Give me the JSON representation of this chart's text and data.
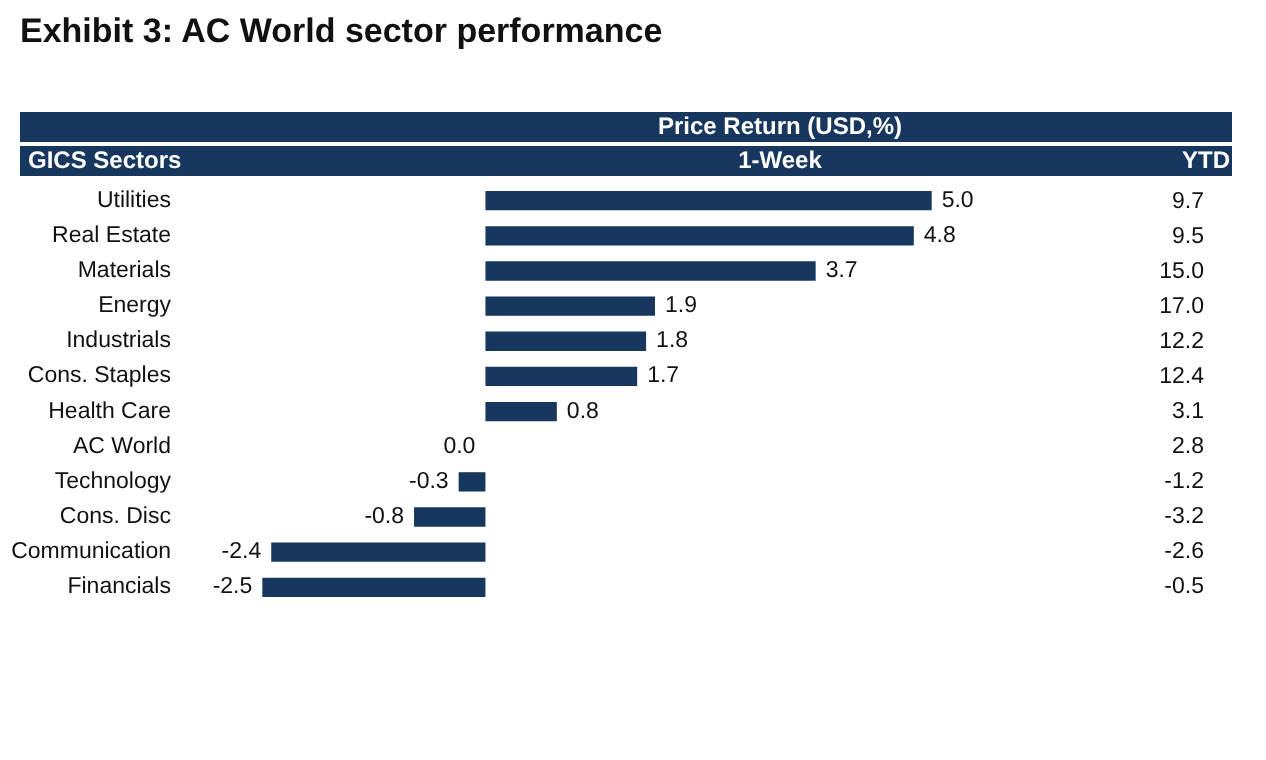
{
  "chart_data": [
    {
      "type": "bar",
      "orientation": "horizontal",
      "title": "Exhibit 3: AC World sector performance",
      "subtitle": "Price Return (USD,%)",
      "ylabel": "GICS Sectors",
      "xlabel": "1-Week",
      "categories": [
        "Utilities",
        "Real Estate",
        "Materials",
        "Energy",
        "Industrials",
        "Cons. Staples",
        "Health Care",
        "AC World",
        "Technology",
        "Cons. Disc",
        "Communication",
        "Financials"
      ],
      "values": [
        5.0,
        4.8,
        3.7,
        1.9,
        1.8,
        1.7,
        0.8,
        0.0,
        -0.3,
        -0.8,
        -2.4,
        -2.5
      ],
      "value_labels": [
        "5.0",
        "4.8",
        "3.7",
        "1.9",
        "1.8",
        "1.7",
        "0.8",
        "0.0",
        "-0.3",
        "-0.8",
        "-2.4",
        "-2.5"
      ],
      "color": "#17375e"
    },
    {
      "type": "other",
      "title": "YTD",
      "values": [
        9.7,
        9.5,
        15.0,
        17.0,
        12.2,
        12.4,
        3.1,
        2.8,
        -1.2,
        -3.2,
        -2.6,
        -0.5
      ],
      "value_labels": [
        "9.7",
        "9.5",
        "15.0",
        "17.0",
        "12.2",
        "12.4",
        "3.1",
        "2.8",
        "-1.2",
        "-3.2",
        "-2.6",
        "-0.5"
      ]
    }
  ]
}
